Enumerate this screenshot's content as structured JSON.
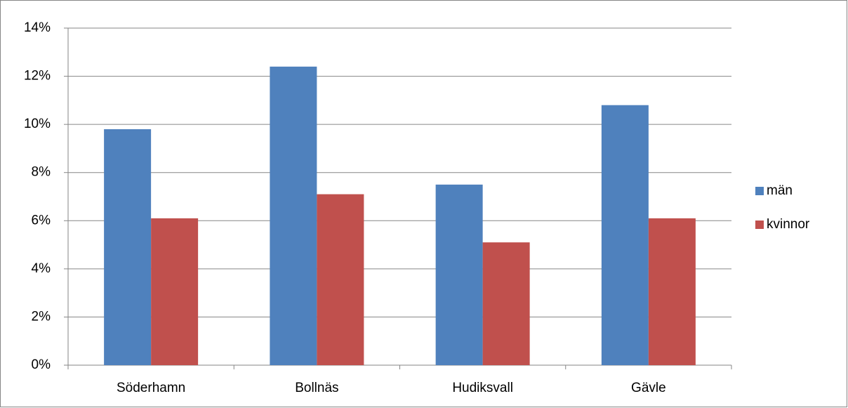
{
  "chart_data": {
    "type": "bar",
    "categories": [
      "Söderhamn",
      "Bollnäs",
      "Hudiksvall",
      "Gävle"
    ],
    "series": [
      {
        "name": "män",
        "color": "#4f81bd",
        "values": [
          9.8,
          12.4,
          7.5,
          10.8
        ]
      },
      {
        "name": "kvinnor",
        "color": "#c0504d",
        "values": [
          6.1,
          7.1,
          5.1,
          6.1
        ]
      }
    ],
    "ylim": [
      0,
      14
    ],
    "yticks": [
      {
        "value": 0,
        "label": "0%"
      },
      {
        "value": 2,
        "label": "2%"
      },
      {
        "value": 4,
        "label": "4%"
      },
      {
        "value": 6,
        "label": "6%"
      },
      {
        "value": 8,
        "label": "8%"
      },
      {
        "value": 10,
        "label": "10%"
      },
      {
        "value": 12,
        "label": "12%"
      },
      {
        "value": 14,
        "label": "14%"
      }
    ],
    "grid": true,
    "legend": "right"
  }
}
